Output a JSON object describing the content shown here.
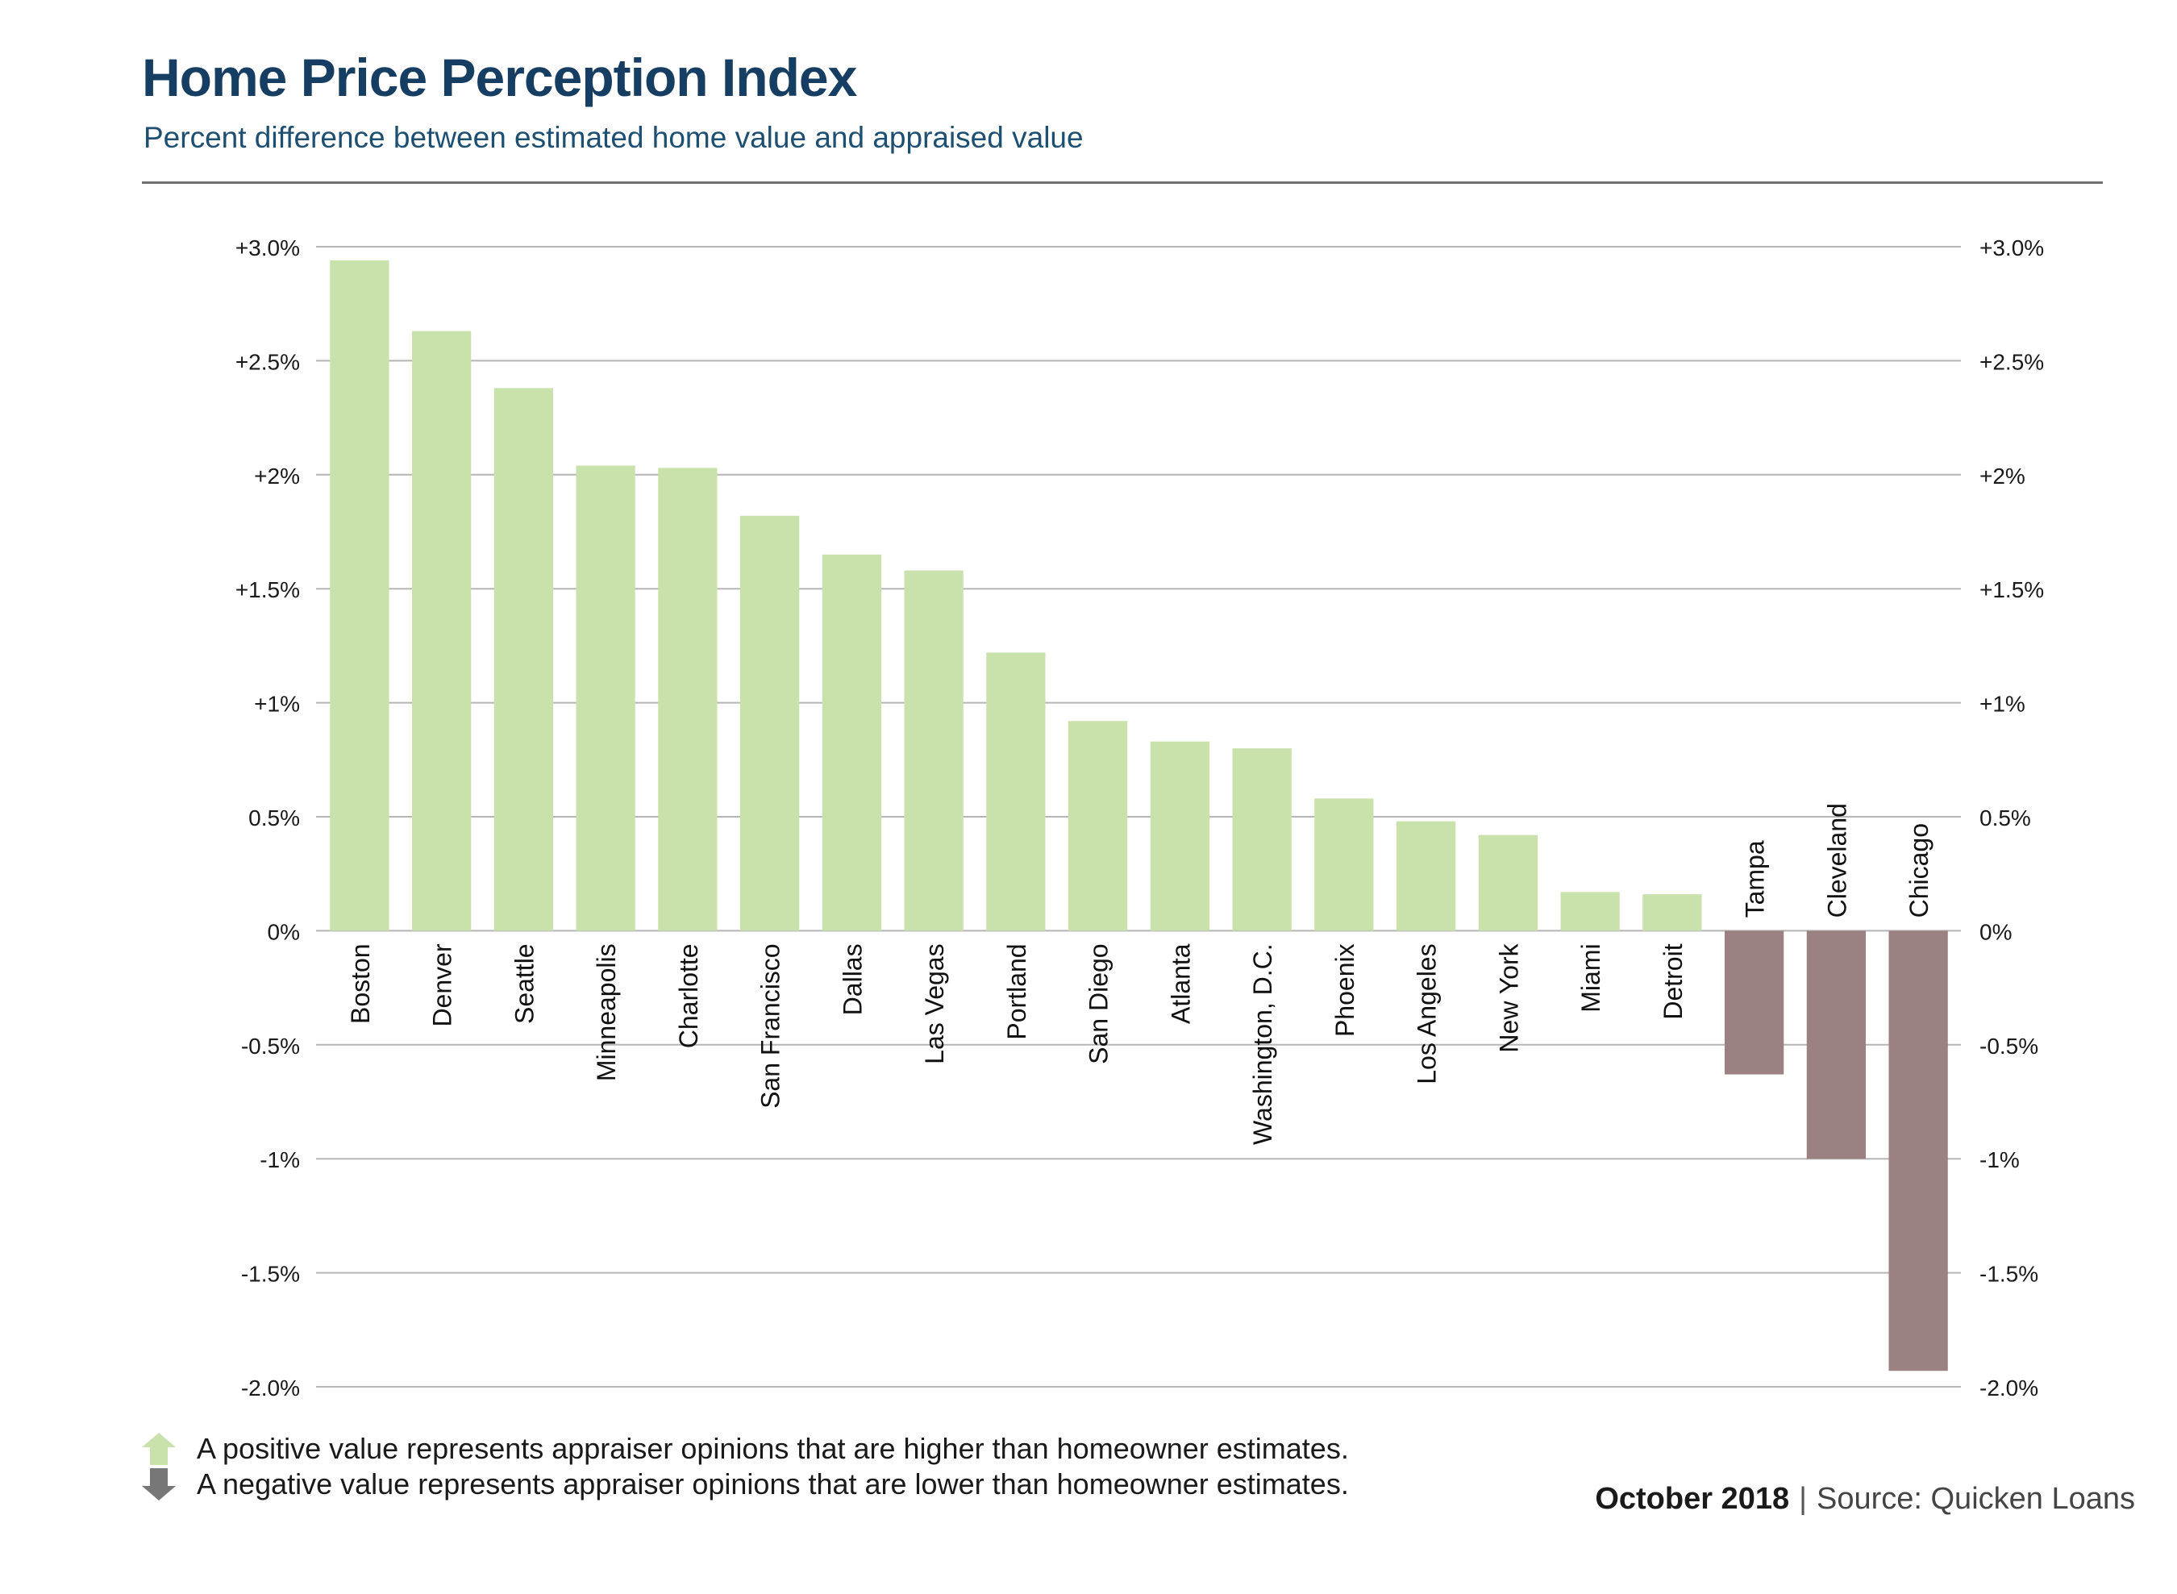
{
  "title": "Home Price Perception Index",
  "subtitle": "Percent difference between estimated home value and appraised value",
  "notes": {
    "positive": "A positive value represents appraiser opinions that are higher than homeowner estimates.",
    "negative": "A negative value represents appraiser opinions that are lower than homeowner estimates."
  },
  "footer": {
    "date": "October 2018",
    "separator": "|",
    "source": "Source: Quicken Loans"
  },
  "colors": {
    "positive_bar": "#c9e2ab",
    "negative_bar": "#9b8181",
    "positive_arrow": "#c9e2ab",
    "negative_arrow": "#777777",
    "gridline": "#b5b5b5",
    "title": "#163e63"
  },
  "chart_data": {
    "type": "bar",
    "categories": [
      "Boston",
      "Denver",
      "Seattle",
      "Minneapolis",
      "Charlotte",
      "San Francisco",
      "Dallas",
      "Las Vegas",
      "Portland",
      "San Diego",
      "Atlanta",
      "Washington, D.C.",
      "Phoenix",
      "Los Angeles",
      "New York",
      "Miami",
      "Detroit",
      "Tampa",
      "Cleveland",
      "Chicago"
    ],
    "values": [
      2.94,
      2.63,
      2.38,
      2.04,
      2.03,
      1.82,
      1.65,
      1.58,
      1.22,
      0.92,
      0.83,
      0.8,
      0.58,
      0.48,
      0.42,
      0.17,
      0.16,
      -0.63,
      -1.0,
      -1.93
    ],
    "ylim": [
      -2.0,
      3.0
    ],
    "yticks": [
      3.0,
      2.5,
      2.0,
      1.5,
      1.0,
      0.5,
      0,
      -0.5,
      -1.0,
      -1.5,
      -2.0
    ],
    "ytick_labels": [
      "+3.0%",
      "+2.5%",
      "+2%",
      "+1.5%",
      "+1%",
      "0.5%",
      "0%",
      "-0.5%",
      "-1%",
      "-1.5%",
      "-2.0%"
    ],
    "grid": true,
    "axes": "left and right"
  }
}
